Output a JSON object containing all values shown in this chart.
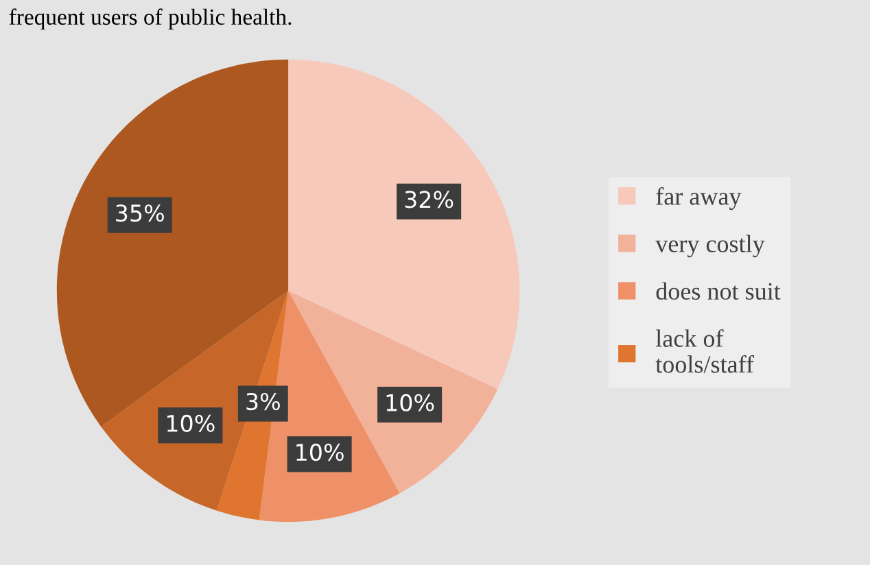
{
  "chart_data": {
    "type": "pie",
    "title": "frequent users of public health.",
    "categories": [
      "far away",
      "very costly",
      "does not suit",
      "lack of tools/staff",
      null,
      null
    ],
    "values": [
      32,
      10,
      10,
      3,
      10,
      35
    ],
    "value_labels": [
      "32%",
      "10%",
      "10%",
      "3%",
      "10%",
      "35%"
    ],
    "colors": [
      "#f6c9bb",
      "#f2b199",
      "#ef9168",
      "#e0752f",
      "#c66628",
      "#ad5820"
    ],
    "legend": "right"
  }
}
